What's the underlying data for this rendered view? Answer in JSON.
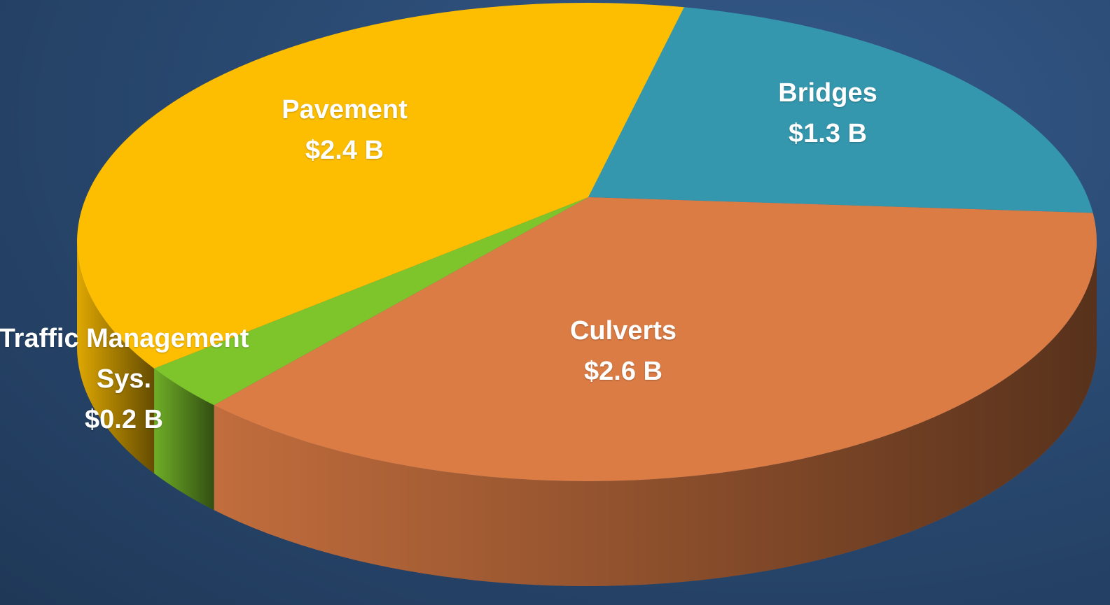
{
  "chart_data": {
    "type": "pie",
    "categories": [
      "Bridges",
      "Culverts",
      "Traffic Management Sys.",
      "Pavement"
    ],
    "values": [
      1.3,
      2.6,
      0.2,
      2.4
    ],
    "value_labels": [
      "$1.3 B",
      "$2.6 B",
      "$0.2 B",
      "$2.4 B"
    ],
    "colors": [
      "#3497ae",
      "#dc7c45",
      "#7ec52c",
      "#fdbe02"
    ]
  }
}
